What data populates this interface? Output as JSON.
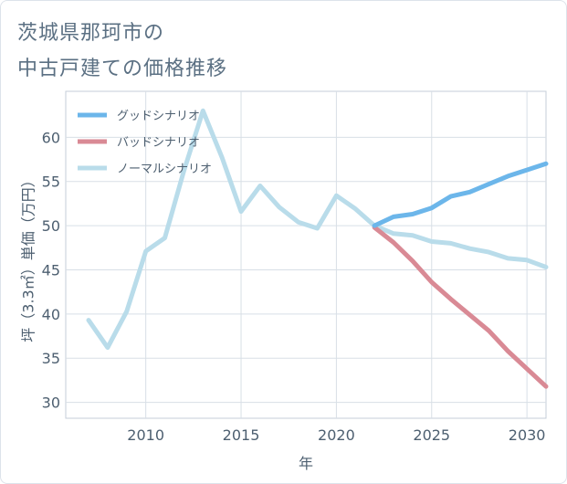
{
  "title_line1": "茨城県那珂市の",
  "title_line2": "中古戸建ての価格推移",
  "chart_data": {
    "type": "line",
    "xlabel": "年",
    "ylabel": "坪（3.3㎡）単価（万円）",
    "xlim": [
      2005.8,
      2031.0
    ],
    "ylim": [
      28.2,
      65.2
    ],
    "x_ticks": [
      2010,
      2015,
      2020,
      2025,
      2030
    ],
    "y_ticks": [
      30,
      35,
      40,
      45,
      50,
      55,
      60
    ],
    "grid": true,
    "legend_position": "top-left",
    "series": [
      {
        "name": "グッドシナリオ",
        "color": "#6cb6ea",
        "x": [
          2022,
          2023,
          2024,
          2025,
          2026,
          2027,
          2028,
          2029,
          2030,
          2031
        ],
        "y": [
          50.0,
          51.0,
          51.3,
          52.0,
          53.3,
          53.8,
          54.7,
          55.6,
          56.3,
          57.0
        ]
      },
      {
        "name": "バッドシナリオ",
        "color": "#d98a95",
        "x": [
          2022,
          2023,
          2024,
          2025,
          2026,
          2027,
          2028,
          2029,
          2030,
          2031
        ],
        "y": [
          49.8,
          48.1,
          46.0,
          43.6,
          41.7,
          39.9,
          38.1,
          35.8,
          33.8,
          31.8
        ]
      },
      {
        "name": "ノーマルシナリオ",
        "color": "#b9dcea",
        "x": [
          2007,
          2008,
          2009,
          2010,
          2011,
          2012,
          2013,
          2014,
          2015,
          2016,
          2017,
          2018,
          2019,
          2020,
          2021,
          2022,
          2023,
          2024,
          2025,
          2026,
          2027,
          2028,
          2029,
          2030,
          2031
        ],
        "y": [
          39.3,
          36.2,
          40.3,
          47.1,
          48.6,
          56.2,
          63.0,
          57.7,
          51.6,
          54.5,
          52.1,
          50.4,
          49.7,
          53.4,
          51.9,
          50.0,
          49.1,
          48.9,
          48.2,
          48.0,
          47.4,
          47.0,
          46.3,
          46.1,
          45.3
        ]
      }
    ]
  }
}
